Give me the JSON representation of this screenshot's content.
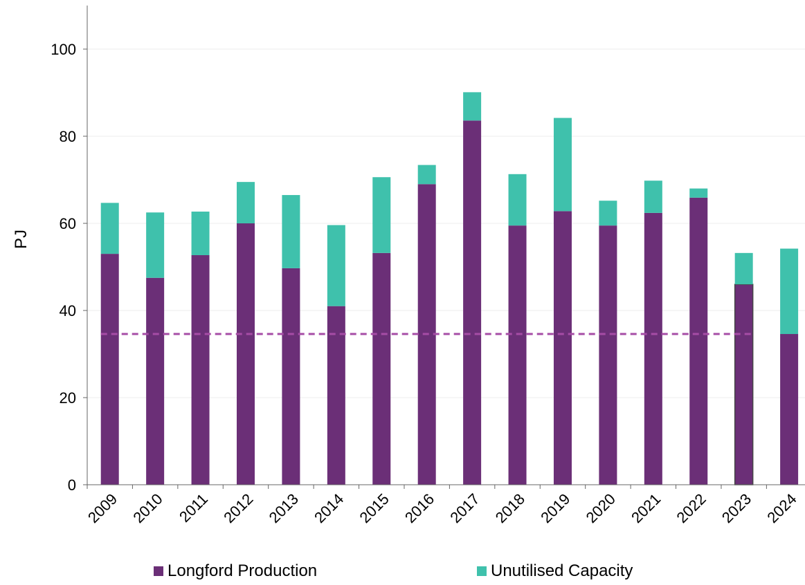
{
  "chart_data": {
    "type": "bar",
    "stacked": true,
    "categories": [
      "2009",
      "2010",
      "2011",
      "2012",
      "2013",
      "2014",
      "2015",
      "2016",
      "2017",
      "2018",
      "2019",
      "2020",
      "2021",
      "2022",
      "2023",
      "2024"
    ],
    "series": [
      {
        "name": "Longford Production",
        "color": "#6b2f77",
        "values": [
          53,
          47.5,
          52.7,
          60,
          49.7,
          41,
          53.2,
          69,
          83.6,
          59.5,
          62.8,
          59.5,
          62.4,
          65.9,
          46,
          34.6
        ]
      },
      {
        "name": "Unutilised Capacity",
        "color": "#3fc1ac",
        "values": [
          11.7,
          15,
          10,
          9.5,
          16.8,
          18.6,
          17.4,
          4.4,
          6.5,
          11.8,
          21.4,
          5.7,
          7.4,
          2.1,
          7.2,
          19.6
        ]
      }
    ],
    "reference_line": {
      "value": 34.6,
      "style": "dashed",
      "color": "#a64ca6"
    },
    "ylabel": "PJ",
    "xlabel": "",
    "ylim": [
      0,
      110
    ],
    "yticks": [
      "0",
      "20",
      "40",
      "60",
      "80",
      "100"
    ],
    "grid": true,
    "legend_position": "bottom"
  }
}
